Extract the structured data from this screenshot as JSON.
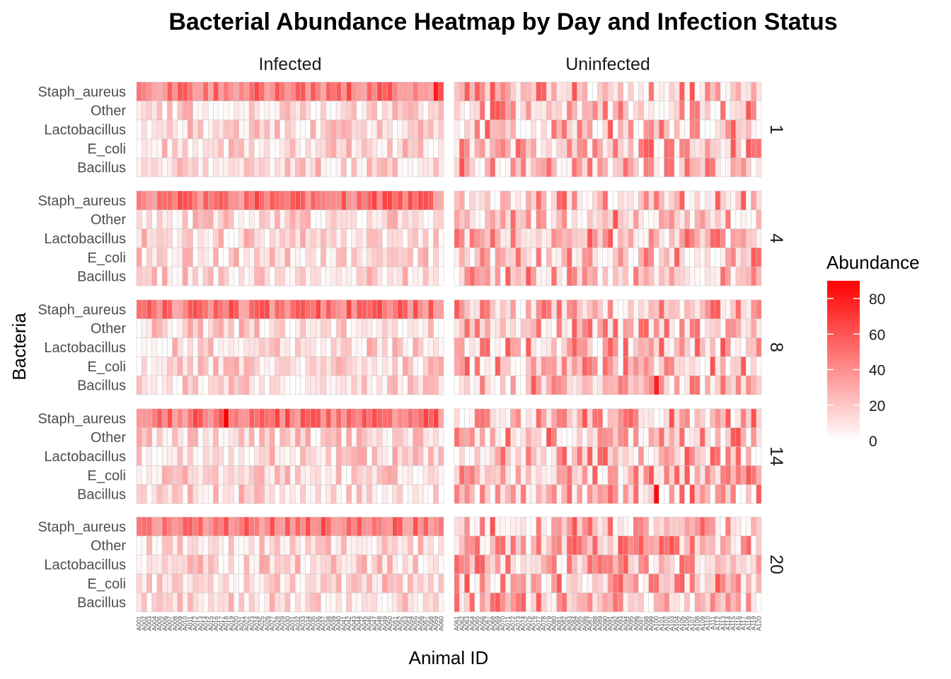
{
  "chart_data": {
    "type": "heatmap",
    "title": "Bacterial Abundance Heatmap by Day and Infection Status",
    "xlabel": "Animal ID",
    "ylabel": "Bacteria",
    "facet_columns": [
      "Infected",
      "Uninfected"
    ],
    "facet_rows": [
      "1",
      "4",
      "8",
      "14",
      "20"
    ],
    "bacteria": [
      "Staph_aureus",
      "Other",
      "Lactobacillus",
      "E_coli",
      "Bacillus"
    ],
    "animals": {
      "Infected": [
        "A001",
        "A002",
        "A003",
        "A004",
        "A005",
        "A006",
        "A007",
        "A008",
        "A009",
        "A010",
        "A011",
        "A012",
        "A013",
        "A014",
        "A015",
        "A016",
        "A017",
        "A018",
        "A019",
        "A020",
        "A021",
        "A022",
        "A023",
        "A024",
        "A025",
        "A026",
        "A027",
        "A028",
        "A029",
        "A030",
        "A031",
        "A032",
        "A033",
        "A034",
        "A035",
        "A036",
        "A037",
        "A038",
        "A039",
        "A040",
        "A041",
        "A042",
        "A043",
        "A044",
        "A045",
        "A046",
        "A047",
        "A048",
        "A049",
        "A050",
        "A051",
        "A052",
        "A053",
        "A054",
        "A055",
        "A056",
        "A057",
        "A058",
        "A059",
        "A060"
      ],
      "Uninfected": [
        "A061",
        "A062",
        "A063",
        "A064",
        "A065",
        "A066",
        "A067",
        "A068",
        "A069",
        "A070",
        "A071",
        "A072",
        "A073",
        "A074",
        "A075",
        "A076",
        "A077",
        "A078",
        "A079",
        "A080",
        "A081",
        "A082",
        "A083",
        "A084",
        "A085",
        "A086",
        "A087",
        "A088",
        "A089",
        "A090",
        "A091",
        "A092",
        "A093",
        "A094",
        "A095",
        "A096",
        "A097",
        "A098",
        "A099",
        "A100",
        "A101",
        "A102",
        "A103",
        "A104",
        "A105",
        "A106",
        "A107",
        "A108",
        "A109",
        "A110",
        "A111",
        "A112",
        "A113",
        "A114",
        "A115",
        "A116",
        "A117",
        "A118",
        "A119",
        "A120"
      ]
    },
    "legend": {
      "title": "Abundance",
      "ticks": [
        "0",
        "20",
        "40",
        "60",
        "80"
      ],
      "min": 0,
      "max": 90,
      "low_color": "#ffffff",
      "high_color": "#ff0000",
      "position": "right"
    },
    "typical_abundance": {
      "Infected": {
        "Staph_aureus": 50,
        "Other": 12,
        "Lactobacillus": 12,
        "E_coli": 12,
        "Bacillus": 12
      },
      "Uninfected": {
        "Staph_aureus": 22,
        "Other": 22,
        "Lactobacillus": 22,
        "E_coli": 22,
        "Bacillus": 22
      }
    },
    "peak_cells": [
      {
        "status": "Infected",
        "day": "14",
        "bacteria": "Staph_aureus",
        "animal": "A018",
        "value": 90
      },
      {
        "status": "Uninfected",
        "day": "14",
        "bacteria": "Bacillus",
        "animal": "A100",
        "value": 88
      },
      {
        "status": "Uninfected",
        "day": "8",
        "bacteria": "Bacillus",
        "animal": "A100",
        "value": 80
      },
      {
        "status": "Infected",
        "day": "1",
        "bacteria": "Staph_aureus",
        "animal": "A059",
        "value": 80
      }
    ]
  }
}
